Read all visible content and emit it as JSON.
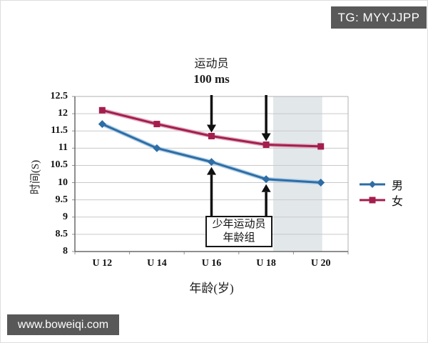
{
  "badge": {
    "text": "TG: MYYJJPP"
  },
  "watermark": {
    "text": "www.boweiqi.com"
  },
  "chart": {
    "title_line1": "运动员",
    "title_line2": "100 ms",
    "annotation_box": {
      "line1": "少年运动员",
      "line2": "年龄组"
    }
  },
  "chart_data": {
    "type": "line",
    "title": "运动员 100 ms",
    "xlabel": "年龄(岁)",
    "ylabel": "时间(S)",
    "categories": [
      "U 12",
      "U 14",
      "U 16",
      "U 18",
      "U 20"
    ],
    "series": [
      {
        "name": "男",
        "color": "#2e6da5",
        "glow": "#a9cbe5",
        "marker": "diamond",
        "values": [
          11.7,
          11.0,
          10.6,
          10.1,
          10.0
        ]
      },
      {
        "name": "女",
        "color": "#a41e4d",
        "glow": "#dca6bc",
        "marker": "square",
        "values": [
          12.1,
          11.7,
          11.35,
          11.1,
          11.05
        ]
      }
    ],
    "ylim": [
      8,
      12.5
    ],
    "ytick_step": 0.5,
    "grid": true,
    "legend_position": "right",
    "shaded_region": {
      "from_category": "U 18",
      "to_category": "U 20",
      "color": "#e2e7ea"
    },
    "annotations": {
      "arrows": [
        {
          "dir": "down",
          "series": "女",
          "category": "U 16"
        },
        {
          "dir": "down",
          "series": "女",
          "category": "U 18"
        },
        {
          "dir": "up",
          "series": "男",
          "category": "U 16"
        },
        {
          "dir": "up",
          "series": "男",
          "category": "U 18"
        }
      ]
    },
    "colors": {
      "grid": "#c9c9c9",
      "frame": "#b0b0b0",
      "axis": "#6a6a6a",
      "arrow": "#101010"
    }
  }
}
